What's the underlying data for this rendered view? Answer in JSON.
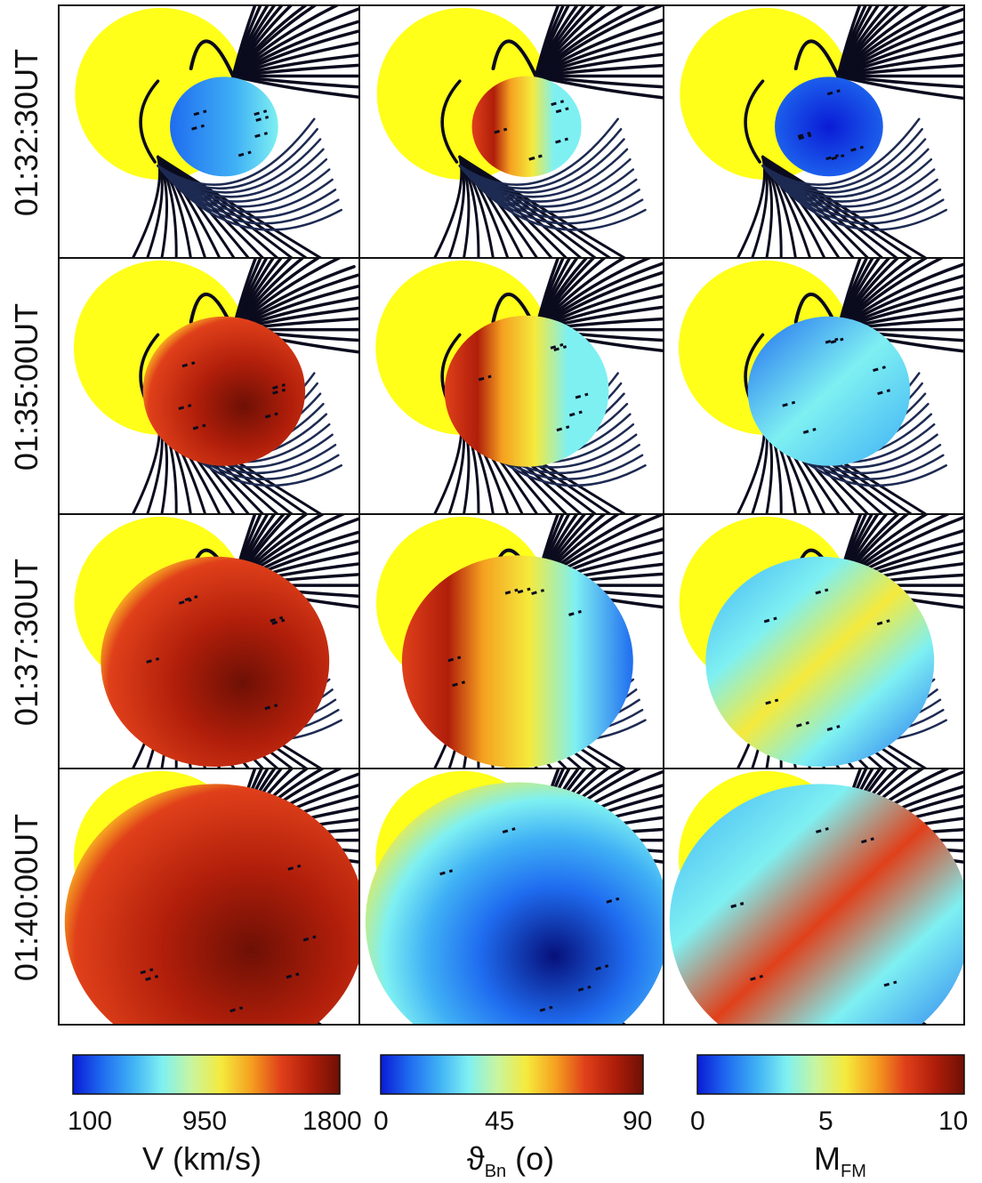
{
  "rows": [
    {
      "label": "01:32:30UT",
      "stage": 0
    },
    {
      "label": "01:35:00UT",
      "stage": 1
    },
    {
      "label": "01:37:30UT",
      "stage": 2
    },
    {
      "label": "01:40:00UT",
      "stage": 3
    }
  ],
  "columns": [
    {
      "quantity": "V",
      "colorbar": {
        "ticks": [
          "100",
          "950",
          "1800"
        ],
        "title_main": "V (km/s)",
        "title_sub": ""
      }
    },
    {
      "quantity": "thetaBn",
      "colorbar": {
        "ticks": [
          "0",
          "45",
          "90"
        ],
        "title_main": "ϑ",
        "title_sub": "Bn",
        "title_suffix": " (o)"
      }
    },
    {
      "quantity": "MFM",
      "colorbar": {
        "ticks": [
          "0",
          "5",
          "10"
        ],
        "title_main": "M",
        "title_sub": "FM",
        "title_suffix": ""
      }
    }
  ],
  "colors": {
    "sun": "#ffff1a",
    "fieldline_dark": "#0b0b1e",
    "fieldline_navy": "#1d2a52",
    "colormap": [
      "#0a1bd6",
      "#1f6cf0",
      "#3fb0f5",
      "#7ef0f2",
      "#c8f5a0",
      "#f5ea3c",
      "#f5a020",
      "#e0401a",
      "#b01e0a",
      "#6e1005"
    ]
  }
}
